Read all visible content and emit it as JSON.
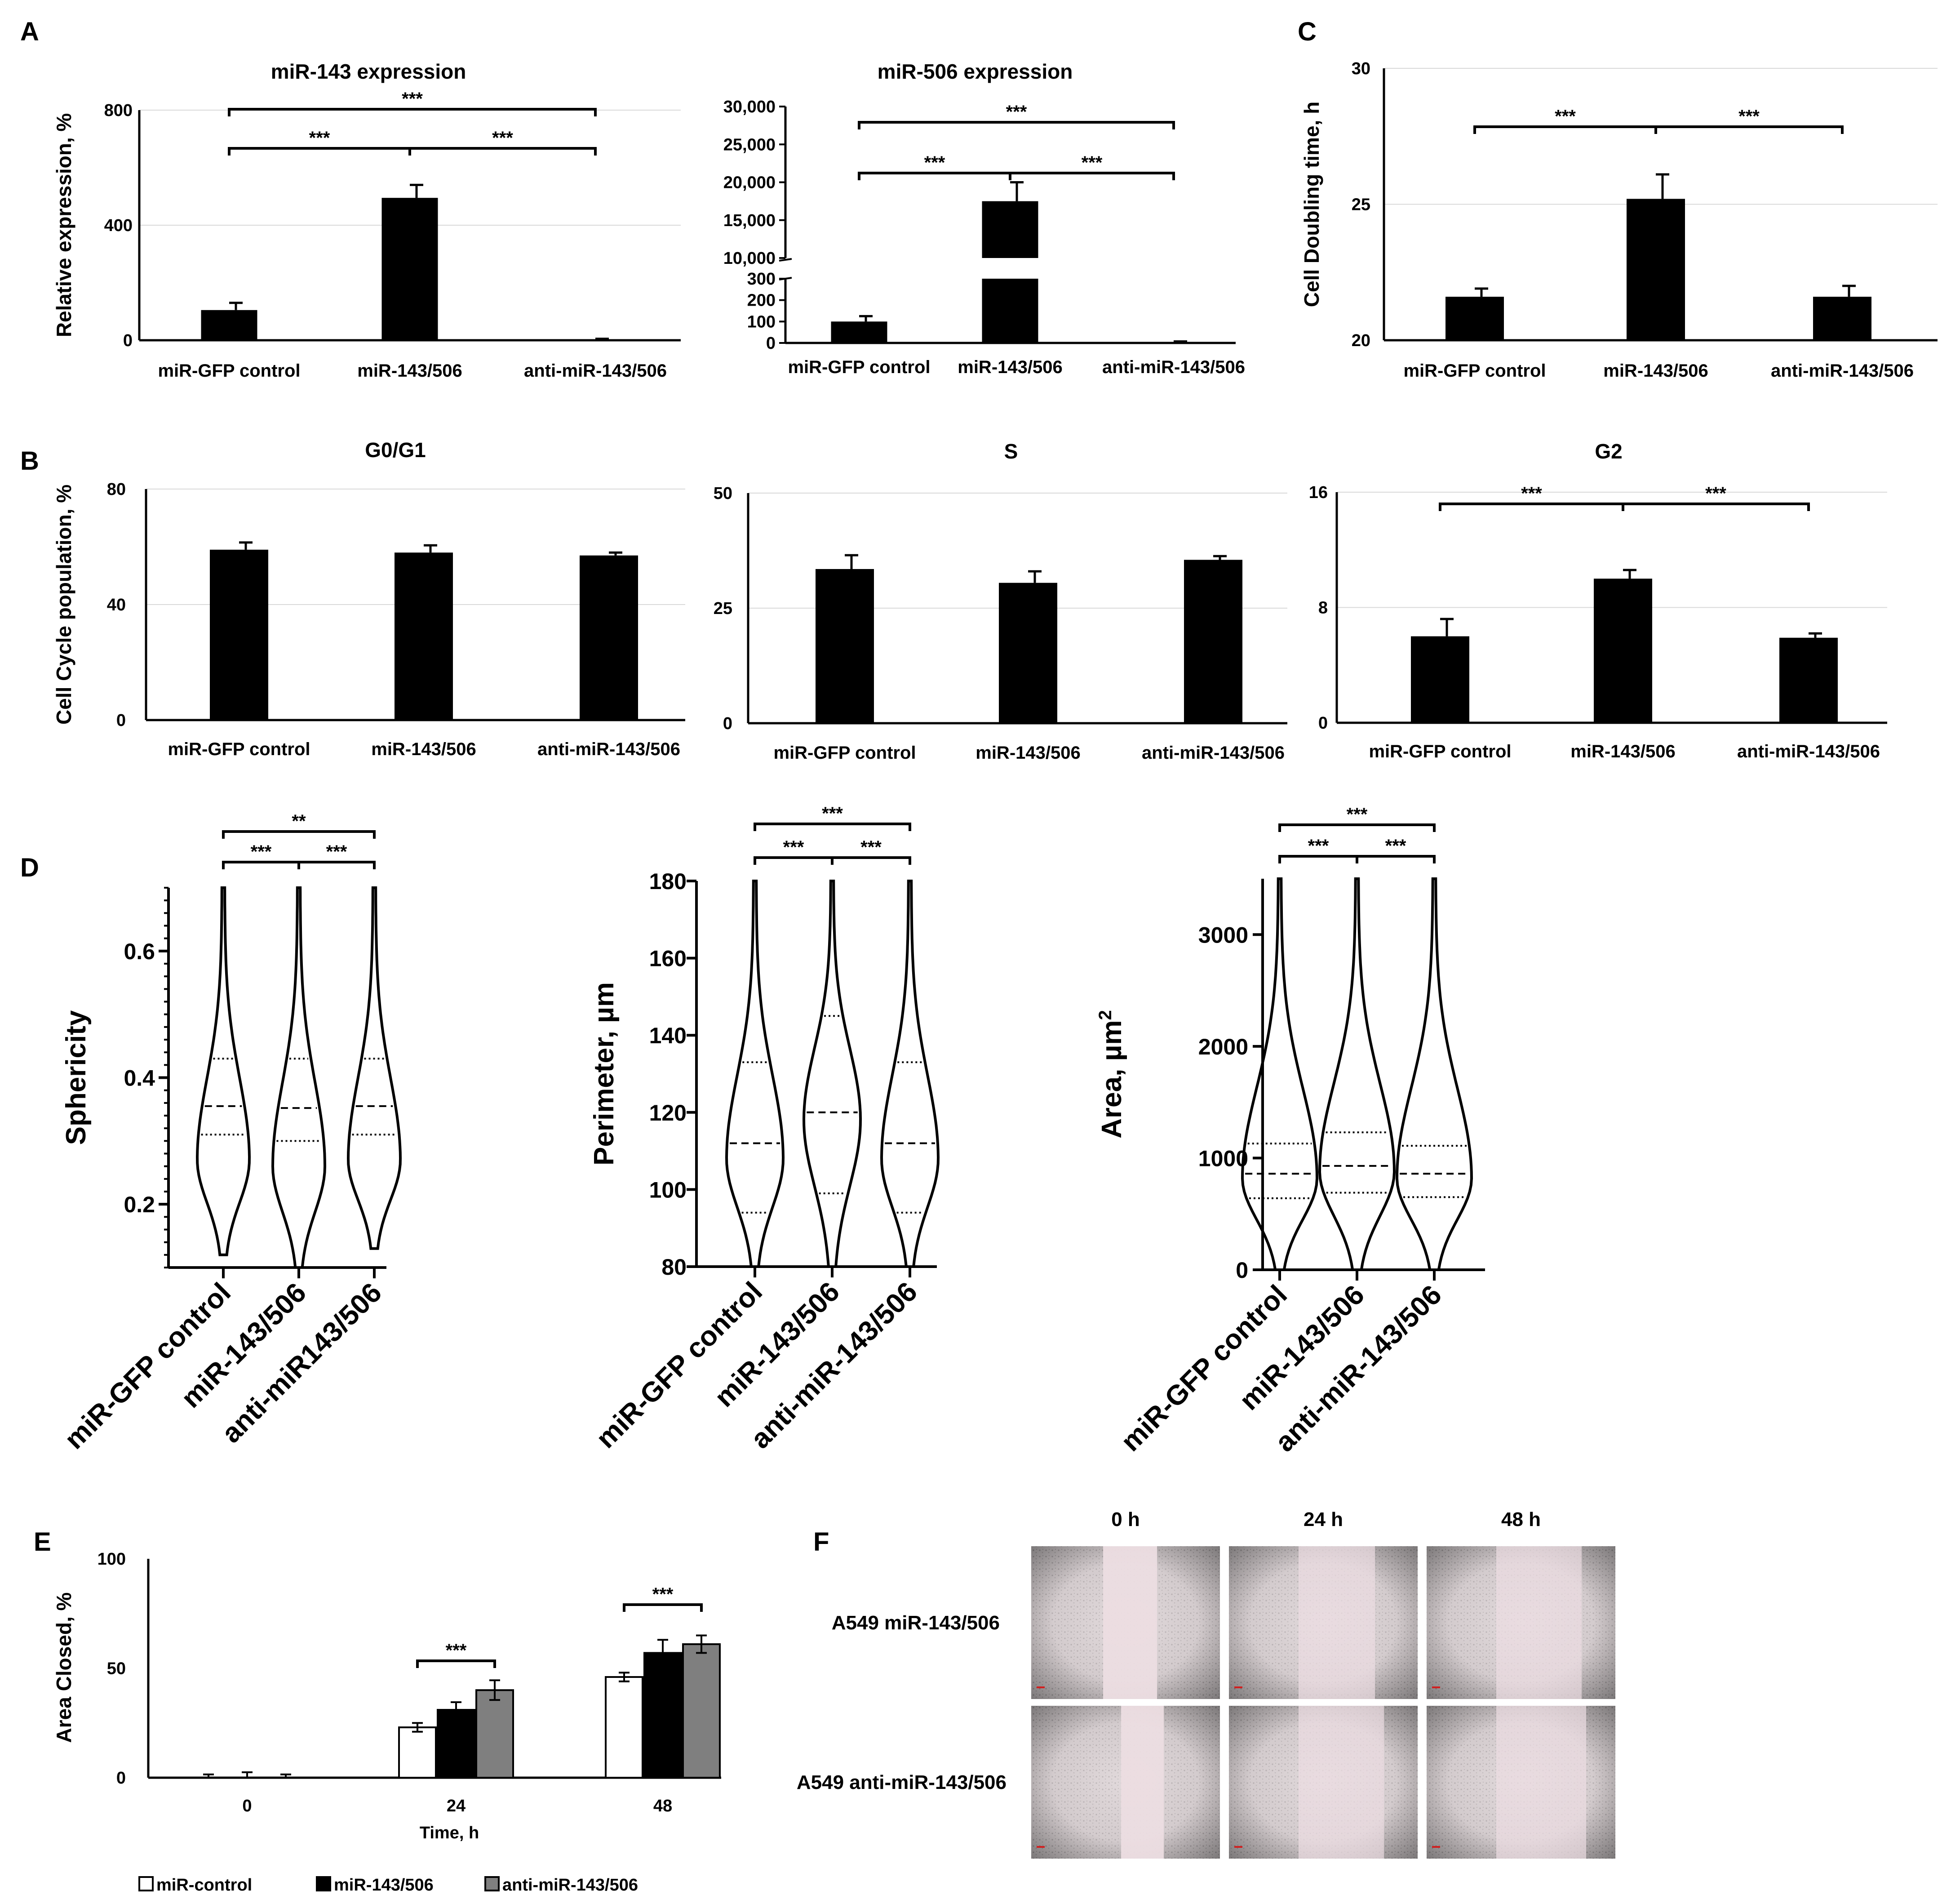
{
  "panel_labels": {
    "A": "A",
    "B": "B",
    "C": "C",
    "D": "D",
    "E": "E",
    "F": "F"
  },
  "colors": {
    "bar": "#000000",
    "anti_bar": "#7f7f7f",
    "control_bar": "#ffffff",
    "scale_bar": "#d02020"
  },
  "chart_data": [
    {
      "id": "A1",
      "type": "bar",
      "title": "miR-143 expression",
      "ylabel": "Relative expression, %",
      "ylim": [
        0,
        800
      ],
      "yticks": [
        0,
        400,
        800
      ],
      "categories": [
        "miR-GFP control",
        "miR-143/506",
        "anti-miR-143/506"
      ],
      "values": [
        105,
        495,
        2
      ],
      "errors": [
        25,
        45,
        3
      ],
      "significance": [
        {
          "from": 0,
          "to": 1,
          "label": "***"
        },
        {
          "from": 1,
          "to": 2,
          "label": "***"
        },
        {
          "from": 0,
          "to": 2,
          "label": "***"
        }
      ]
    },
    {
      "id": "A2",
      "type": "bar",
      "title": "miR-506 expression",
      "ylabel": "",
      "broken_axis": true,
      "ylim_lower": [
        0,
        300
      ],
      "yticks_lower": [
        "0",
        "100",
        "200",
        "300"
      ],
      "ylim_upper": [
        10000,
        30000
      ],
      "yticks_upper": [
        "10,000",
        "15,000",
        "20,000",
        "25,000",
        "30,000"
      ],
      "categories": [
        "miR-GFP control",
        "miR-143/506",
        "anti-miR-143/506"
      ],
      "values": [
        100,
        17500,
        2
      ],
      "errors": [
        25,
        2500,
        5
      ],
      "significance": [
        {
          "from": 0,
          "to": 1,
          "label": "***"
        },
        {
          "from": 1,
          "to": 2,
          "label": "***"
        },
        {
          "from": 0,
          "to": 2,
          "label": "***"
        }
      ]
    },
    {
      "id": "C",
      "type": "bar",
      "title": "",
      "ylabel": "Cell Doubling time, h",
      "ylim": [
        20,
        30
      ],
      "yticks": [
        20,
        25,
        30
      ],
      "categories": [
        "miR-GFP control",
        "miR-143/506",
        "anti-miR-143/506"
      ],
      "values": [
        21.6,
        25.2,
        21.6
      ],
      "errors": [
        0.3,
        0.9,
        0.4
      ],
      "significance": [
        {
          "from": 0,
          "to": 1,
          "label": "***"
        },
        {
          "from": 1,
          "to": 2,
          "label": "***"
        }
      ]
    },
    {
      "id": "B1",
      "type": "bar",
      "title": "G0/G1",
      "ylabel": "Cell Cycle population, %",
      "ylim": [
        0,
        80
      ],
      "yticks": [
        0,
        40,
        80
      ],
      "categories": [
        "miR-GFP control",
        "miR-143/506",
        "anti-miR-143/506"
      ],
      "values": [
        59,
        58,
        57
      ],
      "errors": [
        2.5,
        2.5,
        1.0
      ],
      "significance": []
    },
    {
      "id": "B2",
      "type": "bar",
      "title": "S",
      "ylabel": "",
      "ylim": [
        0,
        50
      ],
      "yticks": [
        0,
        25,
        50
      ],
      "categories": [
        "miR-GFP control",
        "miR-143/506",
        "anti-miR-143/506"
      ],
      "values": [
        33.5,
        30.5,
        35.5
      ],
      "errors": [
        3.0,
        2.5,
        0.8
      ],
      "significance": []
    },
    {
      "id": "B3",
      "type": "bar",
      "title": "G2",
      "ylabel": "",
      "ylim": [
        0,
        16
      ],
      "yticks": [
        0,
        8,
        16
      ],
      "categories": [
        "miR-GFP control",
        "miR-143/506",
        "anti-miR-143/506"
      ],
      "values": [
        6.0,
        10.0,
        5.9
      ],
      "errors": [
        1.2,
        0.6,
        0.3
      ],
      "significance": [
        {
          "from": 0,
          "to": 1,
          "label": "***"
        },
        {
          "from": 1,
          "to": 2,
          "label": "***"
        }
      ]
    },
    {
      "id": "D1",
      "type": "violin",
      "ylabel": "Sphericity",
      "ylim": [
        0.1,
        0.7
      ],
      "yticks": [
        0.2,
        0.4,
        0.6
      ],
      "categories": [
        "miR-GFP control",
        "miR-143/506",
        "anti-miR143/506"
      ],
      "violins": [
        {
          "min": 0.12,
          "max": 0.7,
          "mode": 0.27,
          "q1": 0.31,
          "median": 0.355,
          "q3": 0.43
        },
        {
          "min": 0.1,
          "max": 0.7,
          "mode": 0.26,
          "q1": 0.3,
          "median": 0.352,
          "q3": 0.43
        },
        {
          "min": 0.13,
          "max": 0.7,
          "mode": 0.27,
          "q1": 0.31,
          "median": 0.355,
          "q3": 0.43
        }
      ],
      "significance": [
        {
          "from": 0,
          "to": 1,
          "label": "***"
        },
        {
          "from": 1,
          "to": 2,
          "label": "***"
        },
        {
          "from": 0,
          "to": 2,
          "label": "**"
        }
      ]
    },
    {
      "id": "D2",
      "type": "violin",
      "ylabel": "Perimeter, µm",
      "ylim": [
        80,
        180
      ],
      "yticks": [
        80,
        100,
        120,
        140,
        160,
        180
      ],
      "categories": [
        "miR-GFP control",
        "miR-143/506",
        "anti-miR-143/506"
      ],
      "violins": [
        {
          "min": 80,
          "max": 180,
          "mode": 108,
          "q1": 94,
          "median": 112,
          "q3": 133
        },
        {
          "min": 80,
          "max": 180,
          "mode": 118,
          "q1": 99,
          "median": 120,
          "q3": 145
        },
        {
          "min": 80,
          "max": 180,
          "mode": 108,
          "q1": 94,
          "median": 112,
          "q3": 133
        }
      ],
      "significance": [
        {
          "from": 0,
          "to": 1,
          "label": "***"
        },
        {
          "from": 1,
          "to": 2,
          "label": "***"
        },
        {
          "from": 0,
          "to": 2,
          "label": "***"
        }
      ]
    },
    {
      "id": "D3",
      "type": "violin",
      "ylabel": "Area, µm",
      "ylabel_sup": "2",
      "ylim": [
        0,
        3500
      ],
      "yticks": [
        0,
        1000,
        2000,
        3000
      ],
      "categories": [
        "miR-GFP control",
        "miR-143/506",
        "anti-miR-143/506"
      ],
      "violins": [
        {
          "min": 0,
          "max": 3500,
          "mode": 820,
          "q1": 640,
          "median": 860,
          "q3": 1130
        },
        {
          "min": 0,
          "max": 3500,
          "mode": 880,
          "q1": 690,
          "median": 930,
          "q3": 1230
        },
        {
          "min": 0,
          "max": 3500,
          "mode": 820,
          "q1": 650,
          "median": 860,
          "q3": 1110
        }
      ],
      "significance": [
        {
          "from": 0,
          "to": 1,
          "label": "***"
        },
        {
          "from": 1,
          "to": 2,
          "label": "***"
        },
        {
          "from": 0,
          "to": 2,
          "label": "***"
        }
      ]
    },
    {
      "id": "E",
      "type": "bar",
      "ylabel": "Area Closed, %",
      "xlabel": "Time, h",
      "ylim": [
        0,
        100
      ],
      "yticks": [
        0,
        50,
        100
      ],
      "categories": [
        "0",
        "24",
        "48"
      ],
      "series": [
        {
          "name": "miR-control",
          "values": [
            0,
            23,
            46
          ],
          "errors": [
            1.5,
            2,
            2
          ]
        },
        {
          "name": "miR-143/506",
          "values": [
            0,
            31,
            57
          ],
          "errors": [
            2.5,
            3.5,
            6
          ]
        },
        {
          "name": "anti-miR-143/506",
          "values": [
            0,
            40,
            61
          ],
          "errors": [
            1.5,
            4.5,
            4
          ]
        }
      ],
      "significance": [
        {
          "group": 1,
          "label": "***"
        },
        {
          "group": 2,
          "label": "***"
        }
      ]
    }
  ],
  "photos": {
    "time_labels": [
      "0 h",
      "24 h",
      "48 h"
    ],
    "row_labels": [
      "A549 miR-143/506",
      "A549 anti-miR-143/506"
    ]
  }
}
